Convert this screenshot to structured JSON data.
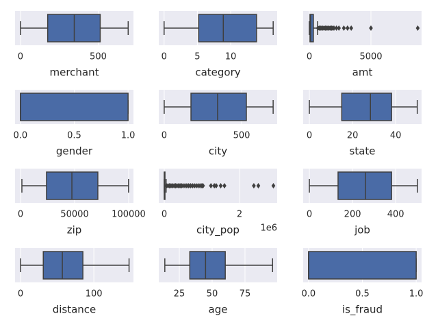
{
  "chart_data": [
    {
      "type": "box",
      "xlabel": "merchant",
      "xlim": [
        -35,
        727
      ],
      "xticks": [
        0,
        500
      ],
      "color": "#4a6ba6",
      "line_color": "#3f3f3f",
      "grid": true,
      "box": {
        "whislo": 0,
        "q1": 175,
        "med": 346,
        "q3": 513,
        "whishi": 693
      },
      "fliers": []
    },
    {
      "type": "box",
      "xlabel": "category",
      "xlim": [
        -0.8,
        17
      ],
      "xticks": [
        0,
        5,
        10
      ],
      "color": "#4a6ba6",
      "line_color": "#3f3f3f",
      "grid": true,
      "box": {
        "whislo": 0,
        "q1": 5.2,
        "med": 8.9,
        "q3": 13.9,
        "whishi": 16.4
      },
      "fliers": []
    },
    {
      "type": "box",
      "xlabel": "amt",
      "xlim": [
        -500,
        9111
      ],
      "xticks": [
        0,
        5000
      ],
      "color": "#4a6ba6",
      "line_color": "#3f3f3f",
      "grid": true,
      "box": {
        "whislo": 1,
        "q1": 50,
        "med": 100,
        "q3": 330,
        "whishi": 670
      },
      "fliers": [
        700,
        800,
        900,
        1000,
        1100,
        1200,
        1300,
        1400,
        1500,
        1600,
        1700,
        1800,
        1900,
        2000,
        2200,
        2400,
        2800,
        3100,
        3400,
        5000,
        8800
      ]
    },
    {
      "type": "box",
      "xlabel": "gender",
      "xlim": [
        -0.05,
        1.05
      ],
      "xticks": [
        {
          "value": 0,
          "label": "0.0"
        },
        0.5,
        {
          "value": 1,
          "label": "1.0"
        }
      ],
      "color": "#4a6ba6",
      "line_color": "#3f3f3f",
      "grid": true,
      "box": {
        "whislo": 0,
        "q1": 0,
        "med": 0,
        "q3": 1,
        "whishi": 1
      },
      "fliers": []
    },
    {
      "type": "box",
      "xlabel": "city",
      "xlim": [
        -35,
        730
      ],
      "xticks": [
        0,
        500
      ],
      "color": "#4a6ba6",
      "line_color": "#3f3f3f",
      "grid": true,
      "box": {
        "whislo": 0,
        "q1": 173,
        "med": 345,
        "q3": 531,
        "whishi": 704
      },
      "fliers": []
    },
    {
      "type": "box",
      "xlabel": "state",
      "xlim": [
        -2.86,
        52
      ],
      "xticks": [
        0,
        20,
        40
      ],
      "color": "#4a6ba6",
      "line_color": "#3f3f3f",
      "grid": true,
      "box": {
        "whislo": 0,
        "q1": 15,
        "med": 28.3,
        "q3": 38.1,
        "whishi": 50
      },
      "fliers": []
    },
    {
      "type": "box",
      "xlabel": "zip",
      "xlim": [
        -5063,
        104430
      ],
      "xticks": [
        0,
        50000,
        100000
      ],
      "color": "#4a6ba6",
      "line_color": "#3f3f3f",
      "grid": true,
      "box": {
        "whislo": 1257,
        "q1": 24000,
        "med": 47500,
        "q3": 71500,
        "whishi": 99900
      },
      "fliers": []
    },
    {
      "type": "box",
      "xlabel": "city_pop",
      "offset_text": "1e6",
      "xlim": [
        -0.145,
        3.0
      ],
      "xticks": [
        0,
        2
      ],
      "color": "#4a6ba6",
      "line_color": "#3f3f3f",
      "grid": true,
      "box": {
        "whislo": 0,
        "q1": 0.0007,
        "med": 0.0025,
        "q3": 0.02,
        "whishi": 0.05
      },
      "fliers": [
        0.06,
        0.1,
        0.14,
        0.18,
        0.22,
        0.26,
        0.3,
        0.34,
        0.38,
        0.42,
        0.46,
        0.5,
        0.55,
        0.6,
        0.65,
        0.7,
        0.75,
        0.8,
        0.85,
        0.9,
        0.95,
        1.0,
        1.03,
        1.24,
        1.33,
        1.38,
        1.5,
        1.6,
        2.38,
        2.5,
        2.9
      ]
    },
    {
      "type": "box",
      "xlabel": "job",
      "xlim": [
        -28.6,
        520
      ],
      "xticks": [
        0,
        200,
        400
      ],
      "color": "#4a6ba6",
      "line_color": "#3f3f3f",
      "grid": true,
      "box": {
        "whislo": 0,
        "q1": 133,
        "med": 260,
        "q3": 381,
        "whishi": 501
      },
      "fliers": []
    },
    {
      "type": "box",
      "xlabel": "distance",
      "xlim": [
        -7.5,
        154
      ],
      "xticks": [
        0,
        100
      ],
      "color": "#4a6ba6",
      "line_color": "#3f3f3f",
      "grid": true,
      "box": {
        "whislo": 0,
        "q1": 31,
        "med": 57,
        "q3": 85,
        "whishi": 148
      },
      "fliers": []
    },
    {
      "type": "box",
      "xlabel": "age",
      "xlim": [
        9.4,
        99.5
      ],
      "xticks": [
        25,
        50,
        75
      ],
      "color": "#4a6ba6",
      "line_color": "#3f3f3f",
      "grid": true,
      "box": {
        "whislo": 14,
        "q1": 33,
        "med": 45,
        "q3": 60,
        "whishi": 96
      },
      "fliers": []
    },
    {
      "type": "box",
      "xlabel": "is_fraud",
      "xlim": [
        -0.05,
        1.05
      ],
      "xticks": [
        {
          "value": 0,
          "label": "0.0"
        },
        0.5,
        {
          "value": 1,
          "label": "1.0"
        }
      ],
      "color": "#4a6ba6",
      "line_color": "#3f3f3f",
      "grid": true,
      "box": {
        "whislo": 0,
        "q1": 0,
        "med": 0,
        "q3": 1,
        "whishi": 1
      },
      "fliers": []
    }
  ]
}
